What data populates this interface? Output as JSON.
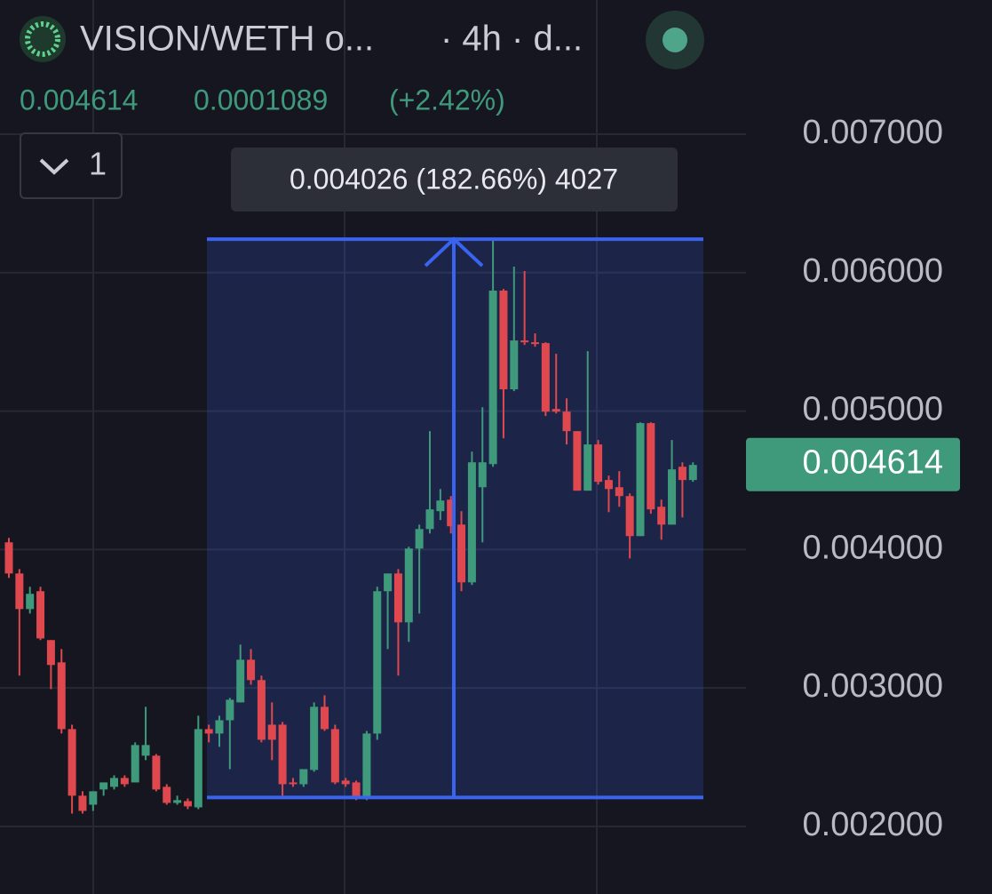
{
  "chart_data": {
    "type": "candlestick",
    "title": "VISION/WETH o...",
    "subtitle": "· 4h · d...",
    "last_price": 0.004614,
    "change": 0.0001089,
    "change_percent": "(+2.42%)",
    "indicator_count": "1",
    "up_color": "#3f9a7c",
    "down_color": "#e0484f",
    "ylim": [
      0.001512,
      0.007969
    ],
    "yticks": [
      {
        "value": 0.007,
        "label": "0.007000"
      },
      {
        "value": 0.006,
        "label": "0.006000"
      },
      {
        "value": 0.005,
        "label": "0.005000"
      },
      {
        "value": 0.004,
        "label": "0.004000"
      },
      {
        "value": 0.003,
        "label": "0.003000"
      },
      {
        "value": 0.002,
        "label": "0.002000"
      }
    ],
    "grid": true,
    "series": [
      {
        "open": [
          0.004052,
          0.003827,
          0.00357,
          0.003699,
          0.003346,
          0.003185,
          0.002703,
          0.002222,
          0.002157,
          0.002267,
          0.002286,
          0.00235,
          0.002318,
          0.002511,
          0.002511,
          0.002286,
          0.00217,
          0.002183,
          0.002138,
          0.002703,
          0.002671,
          0.002767,
          0.002896,
          0.003204,
          0.003057,
          0.002735,
          0.002735,
          0.002318,
          0.002305,
          0.002408,
          0.002864,
          0.002703,
          0.002331,
          0.002318,
          0.002209,
          0.002671,
          0.003699,
          0.003827,
          0.003474,
          0.004007,
          0.004148,
          0.004277,
          0.00436,
          0.00418,
          0.003763,
          0.00445,
          0.004617,
          0.00587,
          0.005157,
          0.00551,
          0.005497,
          0.005491,
          0.005015,
          0.004996,
          0.004855,
          0.004425,
          0.004759,
          0.004502,
          0.00445,
          0.004386,
          0.004097,
          0.004913,
          0.004309,
          0.00418,
          0.004598,
          0.004502
        ],
        "high": [
          0.004084,
          0.003859,
          0.003731,
          0.003731,
          0.003346,
          0.003281,
          0.002735,
          0.002254,
          0.002254,
          0.002318,
          0.002369,
          0.002369,
          0.002607,
          0.002864,
          0.002523,
          0.002305,
          0.002222,
          0.002202,
          0.0028,
          0.002735,
          0.0028,
          0.002928,
          0.003313,
          0.003281,
          0.003089,
          0.002896,
          0.002755,
          0.00235,
          0.002414,
          0.002896,
          0.002947,
          0.002735,
          0.00235,
          0.002331,
          0.00269,
          0.003731,
          0.003827,
          0.003859,
          0.00402,
          0.00418,
          0.004855,
          0.004437,
          0.004386,
          0.004277,
          0.004707,
          0.005028,
          0.006249,
          0.005882,
          0.006043,
          0.006011,
          0.005561,
          0.005497,
          0.005414,
          0.005092,
          0.004855,
          0.005433,
          0.004791,
          0.004534,
          0.004566,
          0.004405,
          0.004919,
          0.004919,
          0.00436,
          0.004791,
          0.00463,
          0.00463
        ],
        "low": [
          0.003795,
          0.003089,
          0.003538,
          0.003346,
          0.002992,
          0.002671,
          0.002093,
          0.002093,
          0.002112,
          0.002222,
          0.002267,
          0.002286,
          0.002318,
          0.002479,
          0.002254,
          0.002157,
          0.002157,
          0.002125,
          0.002125,
          0.002607,
          0.002575,
          0.002414,
          0.002896,
          0.003024,
          0.002607,
          0.002479,
          0.002222,
          0.002286,
          0.002286,
          0.002395,
          0.00269,
          0.002305,
          0.002286,
          0.00219,
          0.00219,
          0.002626,
          0.003281,
          0.003089,
          0.003333,
          0.003538,
          0.004116,
          0.004213,
          0.004116,
          0.003699,
          0.003744,
          0.004052,
          0.004598,
          0.004803,
          0.005144,
          0.005478,
          0.005465,
          0.004964,
          0.004983,
          0.004759,
          0.004425,
          0.004425,
          0.004469,
          0.00427,
          0.004309,
          0.003936,
          0.004097,
          0.004258,
          0.004071,
          0.00418,
          0.004232,
          0.004489
        ],
        "close": [
          0.003827,
          0.00357,
          0.00368,
          0.003358,
          0.003166,
          0.002703,
          0.002222,
          0.002112,
          0.002254,
          0.002318,
          0.00235,
          0.002305,
          0.002588,
          0.002588,
          0.002267,
          0.00217,
          0.00219,
          0.002145,
          0.002703,
          0.002671,
          0.002767,
          0.002915,
          0.003204,
          0.003057,
          0.002626,
          0.002626,
          0.002305,
          0.002305,
          0.002414,
          0.002864,
          0.002703,
          0.002318,
          0.002305,
          0.002209,
          0.002671,
          0.003699,
          0.003827,
          0.003474,
          0.004007,
          0.004148,
          0.00429,
          0.004354,
          0.004168,
          0.003763,
          0.00463,
          0.00463,
          0.00587,
          0.005157,
          0.00551,
          0.005497,
          0.005484,
          0.004996,
          0.004996,
          0.004855,
          0.004425,
          0.004759,
          0.004489,
          0.004437,
          0.004386,
          0.004097,
          0.004913,
          0.00429,
          0.00418,
          0.004579,
          0.004502,
          0.004611
        ]
      }
    ],
    "measure": {
      "low": 0.002209,
      "high": 0.006242,
      "color": "#3a63f0",
      "label": "0.004026 (182.66%) 4027"
    }
  }
}
